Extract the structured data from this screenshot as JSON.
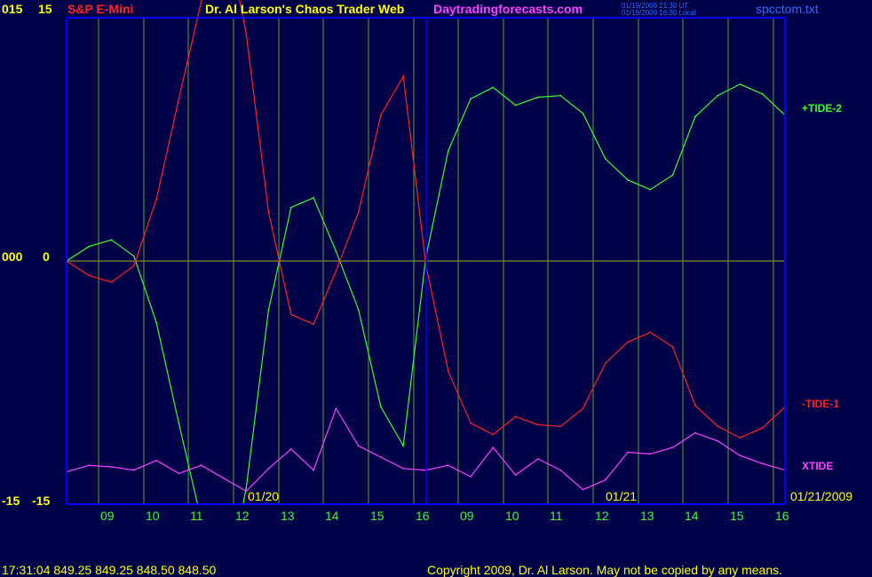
{
  "header": {
    "left_values": [
      "015",
      "15"
    ],
    "instrument": "S&P E-Mini",
    "title": "Dr. Al Larson's Chaos Trader Web",
    "site": "Daytradingforecasts.com",
    "timestamp_ut": "01/19/2009 21:30 UT",
    "timestamp_local": "01/19/2009 16:30 Local",
    "filename": "spcctom.txt"
  },
  "y_axis_left": {
    "top": [
      "015",
      "15"
    ],
    "middle": [
      "000",
      "0"
    ],
    "bottom": [
      "-15",
      "-15"
    ]
  },
  "date_labels": {
    "day1": "01/20",
    "day2": "01/21",
    "end": "01/21/2009"
  },
  "footer": {
    "quote": "17:31:04  849.25 849.25 848.50 848.50",
    "copyright": "Copyright 2009, Dr. Al Larson. May not be copied by any means."
  },
  "colors": {
    "background": "#000047",
    "axis": "#0000FF",
    "grid": "#4FA830",
    "zero_line": "#8C8C2A",
    "tide2": "#33FF33",
    "tide1": "#FF2222",
    "xtide": "#FF40FF",
    "header_title": "#FFFF00",
    "instrument": "#FF2222",
    "site": "#FF40FF",
    "blue_text": "#2A6CFF",
    "hour_labels": "#33FF33"
  },
  "chart_data": {
    "type": "line",
    "title": "S&P E-Mini",
    "ylim": [
      -15,
      15
    ],
    "xlabel": "",
    "ylabel": "",
    "grid": true,
    "x_tick_labels": [
      "09",
      "10",
      "11",
      "12",
      "13",
      "14",
      "15",
      "16",
      "09",
      "10",
      "11",
      "12",
      "13",
      "14",
      "15",
      "16"
    ],
    "x": [
      0,
      1,
      2,
      3,
      4,
      5,
      6,
      7,
      8,
      9,
      10,
      11,
      12,
      13,
      14,
      15,
      16,
      17,
      18,
      19,
      20,
      21,
      22,
      23,
      24,
      25,
      26,
      27,
      28,
      29,
      30,
      31,
      32
    ],
    "series": [
      {
        "name": "+TIDE-2",
        "values": [
          0,
          0.9,
          1.3,
          0.3,
          -3.8,
          -10,
          -16,
          -21,
          -14,
          -3,
          3.3,
          3.9,
          0.6,
          -3,
          -9,
          -11.4,
          0.2,
          6.8,
          10,
          10.7,
          9.6,
          10.1,
          10.2,
          9.1,
          6.3,
          5,
          4.4,
          5.3,
          8.9,
          10.2,
          10.9,
          10.3,
          9
        ]
      },
      {
        "name": "-TIDE-1",
        "values": [
          0,
          -0.9,
          -1.3,
          -0.3,
          3.8,
          10,
          16,
          21,
          14,
          3,
          -3.3,
          -3.9,
          -0.6,
          3,
          9,
          11.4,
          -0.2,
          -6.8,
          -10,
          -10.7,
          -9.6,
          -10.1,
          -10.2,
          -9.1,
          -6.3,
          -5,
          -4.4,
          -5.3,
          -8.9,
          -10.2,
          -10.9,
          -10.3,
          -9
        ]
      },
      {
        "name": "XTIDE",
        "values": [
          -13,
          -12.6,
          -12.7,
          -12.9,
          -12.3,
          -13.1,
          -12.6,
          -13.4,
          -14.2,
          -12.8,
          -11.6,
          -12.9,
          -9.1,
          -11.4,
          -12.1,
          -12.8,
          -12.9,
          -12.6,
          -13.3,
          -11.5,
          -13.2,
          -12.2,
          -12.9,
          -14.1,
          -13.5,
          -11.8,
          -11.9,
          -11.5,
          -10.6,
          -11.1,
          -12,
          -12.5,
          -12.9
        ]
      }
    ]
  }
}
